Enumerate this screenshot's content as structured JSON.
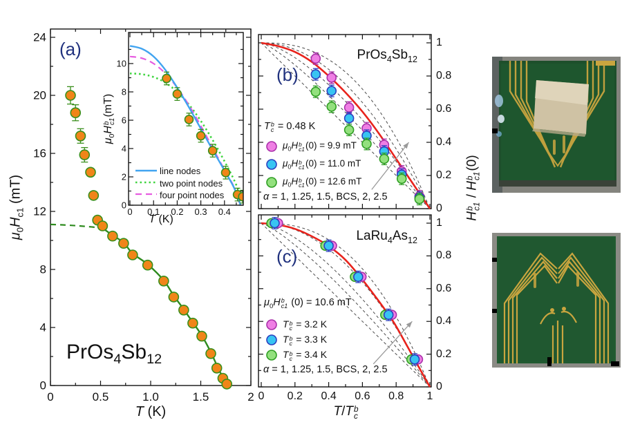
{
  "colors": {
    "axis": "#111111",
    "panel_label": "#20317e",
    "orange_fill": "#f08519",
    "orange_edge": "#3a8f1c",
    "green_curve": "#2e8b1e",
    "line_nodes_blue": "#41a4f0",
    "two_point_green": "#3ed43e",
    "four_point_magenta": "#e65ce0",
    "red_curve": "#e8231c",
    "dashed_gray": "#4a4a4a",
    "arrow_gray": "#9a9a9a",
    "magenta_fill": "#ef7fe4",
    "magenta_edge": "#aa30aa",
    "blue_fill": "#38c4f2",
    "blue_edge": "#2b3fc0",
    "green_fill": "#93e07e",
    "green_edge": "#2f9e23",
    "pcb_green": "#1d4f2b",
    "pcb_green2": "#215a31",
    "gold": "#c9a53f",
    "sample_tan": "#cfc2a4"
  },
  "panel_a": {
    "label": "(a)",
    "title_html": "PrOs<sub>4</sub>Sb<sub>12</sub>",
    "xlabel_html": "<i>T</i> (K)",
    "ylabel_html": "<i>μ</i><sub>0</sub><i>H</i><sub>c1</sub> (mT)"
  },
  "inset": {
    "xlabel_html": "<i>T</i> (K)",
    "ylabel_html": "<i>μ</i><sub>0</sub><i>H</i><span class='stk'><span><i>b</i></span><span><i>c1</i></span></span>(mT)",
    "legend": [
      "line nodes",
      "two point nodes",
      "four point nodes"
    ]
  },
  "panel_b": {
    "label": "(b)",
    "title_html": "PrOs<sub>4</sub>Sb<sub>12</sub>",
    "tc_html": "<i>T</i><span class='stk'><span><i>b</i></span><span><i>c</i></span></span> = 0.48 K",
    "legend_html": [
      "<i>μ</i><sub>0</sub><i>H</i><span class='stk'><span><i>b</i></span><span><i>c1</i></span></span>(0) = 9.9 mT",
      "<i>μ</i><sub>0</sub><i>H</i><span class='stk'><span><i>b</i></span><span><i>c1</i></span></span>(0) = 11.0 mT",
      "<i>μ</i><sub>0</sub><i>H</i><span class='stk'><span><i>b</i></span><span><i>c1</i></span></span>(0) = 12.6 mT"
    ],
    "alpha_html": "<i>α</i> = 1, 1.25, 1.5, BCS, 2, 2.5"
  },
  "panel_c": {
    "label": "(c)",
    "title_html": "LaRu<sub>4</sub>As<sub>12</sub>",
    "h0_html": "<i>μ</i><sub>0</sub><i>H</i><span class='stk'><span><i>b</i></span><span><i>c1</i></span></span> (0) = 10.6 mT",
    "legend_html": [
      "<i>T</i><span class='stk'><span><i>b</i></span><span><i>c</i></span></span> = 3.2 K",
      "<i>T</i><span class='stk'><span><i>b</i></span><span><i>c</i></span></span> = 3.3 K",
      "<i>T</i><span class='stk'><span><i>b</i></span><span><i>c</i></span></span> = 3.4 K"
    ],
    "alpha_html": "<i>α</i> = 1, 1.25, 1.5, BCS, 2, 2.5",
    "xlabel_html": "<i>T</i>/<i>T</i><span class='stk'><span><i>b</i></span><span><i>c</i></span></span>"
  },
  "shared_ylabel_html": "<i>H</i><span class='stk'><span><i>b</i></span><span><i>c1</i></span></span> / <i>H</i><span class='stk'><span><i>b</i></span><span><i>c1</i></span></span>(0)",
  "chart_data": [
    {
      "id": "panel_a",
      "type": "scatter",
      "title": "PrOs4Sb12",
      "xlabel": "T (K)",
      "ylabel": "mu0 Hc1 (mT)",
      "xlim": [
        0,
        2
      ],
      "ylim": [
        0,
        24.6
      ],
      "xticks": {
        "values": [
          0,
          0.5,
          1,
          1.5,
          2
        ],
        "labels": [
          "0",
          "0.5",
          "1.0",
          "1.5",
          "2"
        ],
        "minor": [
          0.25,
          0.75,
          1.25,
          1.75
        ]
      },
      "yticks": {
        "values": [
          0,
          4,
          8,
          12,
          16,
          20,
          24
        ],
        "labels": [
          "0",
          "4",
          "8",
          "12",
          "16",
          "20",
          "24"
        ],
        "minor": [
          2,
          6,
          10,
          14,
          18,
          22
        ]
      },
      "points": [
        [
          0.2,
          20.0
        ],
        [
          0.25,
          18.8
        ],
        [
          0.3,
          17.2
        ],
        [
          0.34,
          15.9
        ],
        [
          0.4,
          14.7
        ],
        [
          0.43,
          13.1
        ],
        [
          0.47,
          11.4
        ],
        [
          0.52,
          11.0
        ],
        [
          0.62,
          10.3
        ],
        [
          0.73,
          9.8
        ],
        [
          0.82,
          9.0
        ],
        [
          0.97,
          8.3
        ],
        [
          1.13,
          7.2
        ],
        [
          1.23,
          6.1
        ],
        [
          1.33,
          5.2
        ],
        [
          1.42,
          4.3
        ],
        [
          1.51,
          3.4
        ],
        [
          1.6,
          2.2
        ],
        [
          1.66,
          1.2
        ],
        [
          1.72,
          0.5
        ],
        [
          1.76,
          0.1
        ]
      ],
      "yerr": [
        0.6,
        0.55,
        0.5,
        0.5,
        0,
        0,
        0,
        0,
        0,
        0,
        0,
        0,
        0,
        0,
        0,
        0,
        0,
        0,
        0,
        0,
        0
      ],
      "fit_solid": [
        [
          0.52,
          10.85
        ],
        [
          0.62,
          10.35
        ],
        [
          0.73,
          9.85
        ],
        [
          0.82,
          9.1
        ],
        [
          0.97,
          8.35
        ],
        [
          1.13,
          7.25
        ],
        [
          1.23,
          6.2
        ],
        [
          1.33,
          5.25
        ],
        [
          1.42,
          4.35
        ],
        [
          1.51,
          3.45
        ],
        [
          1.6,
          2.3
        ],
        [
          1.68,
          1.1
        ],
        [
          1.74,
          0.35
        ],
        [
          1.78,
          0
        ]
      ],
      "fit_dashed": [
        [
          0,
          11.1
        ],
        [
          0.12,
          11.07
        ],
        [
          0.25,
          11.02
        ],
        [
          0.38,
          10.95
        ],
        [
          0.52,
          10.85
        ]
      ]
    },
    {
      "id": "panel_a_inset",
      "type": "line",
      "title": "nodal-model fits",
      "xlabel": "T (K)",
      "ylabel": "mu0 Hc1_b (mT)",
      "xlim": [
        0,
        0.48
      ],
      "ylim": [
        0,
        12.2
      ],
      "xticks": {
        "values": [
          0,
          0.1,
          0.2,
          0.3,
          0.4
        ],
        "labels": [
          "0",
          "0.1",
          "0.2",
          "0.3",
          "0.4"
        ],
        "minor": [
          0.05,
          0.15,
          0.25,
          0.35,
          0.45
        ]
      },
      "yticks": {
        "values": [
          0,
          2,
          4,
          6,
          8,
          10
        ],
        "labels": [
          "0",
          "2",
          "4",
          "6",
          "8",
          "10"
        ],
        "minor": [
          1,
          3,
          5,
          7,
          9,
          11
        ]
      },
      "points": [
        [
          0.155,
          8.95
        ],
        [
          0.2,
          7.85
        ],
        [
          0.25,
          6.05
        ],
        [
          0.3,
          4.9
        ],
        [
          0.35,
          3.85
        ],
        [
          0.405,
          2.3
        ],
        [
          0.455,
          0.75
        ],
        [
          0.477,
          0.6
        ]
      ],
      "yerr_all": 0.45,
      "curves": [
        {
          "name": "line nodes",
          "style": "solid",
          "color_key": "line_nodes_blue",
          "points": [
            [
              0,
              11.25
            ],
            [
              0.05,
              11.05
            ],
            [
              0.1,
              10.5
            ],
            [
              0.15,
              9.55
            ],
            [
              0.2,
              8.3
            ],
            [
              0.25,
              6.9
            ],
            [
              0.3,
              5.4
            ],
            [
              0.35,
              3.9
            ],
            [
              0.4,
              2.45
            ],
            [
              0.44,
              1.25
            ],
            [
              0.468,
              0
            ]
          ]
        },
        {
          "name": "two point nodes",
          "style": "dotted",
          "color_key": "two_point_green",
          "points": [
            [
              0,
              9.3
            ],
            [
              0.05,
              9.25
            ],
            [
              0.1,
              9.05
            ],
            [
              0.15,
              8.65
            ],
            [
              0.2,
              8.0
            ],
            [
              0.25,
              7.1
            ],
            [
              0.3,
              5.95
            ],
            [
              0.35,
              4.6
            ],
            [
              0.4,
              3.1
            ],
            [
              0.44,
              1.8
            ],
            [
              0.478,
              0.3
            ]
          ]
        },
        {
          "name": "four point nodes",
          "style": "dashed",
          "color_key": "four_point_magenta",
          "points": [
            [
              0,
              10.5
            ],
            [
              0.05,
              10.38
            ],
            [
              0.1,
              10.0
            ],
            [
              0.15,
              9.3
            ],
            [
              0.2,
              8.3
            ],
            [
              0.25,
              7.05
            ],
            [
              0.3,
              5.6
            ],
            [
              0.35,
              4.05
            ],
            [
              0.4,
              2.5
            ],
            [
              0.44,
              1.3
            ],
            [
              0.462,
              0.2
            ]
          ]
        }
      ]
    },
    {
      "id": "panel_b",
      "type": "scatter",
      "title": "PrOs4Sb12",
      "xlabel": "T/Tc_b",
      "ylabel": "Hc1_b / Hc1_b(0)",
      "tc_b_K": 0.48,
      "xlim": [
        0,
        1
      ],
      "ylim": [
        0,
        1.05
      ],
      "xticks": {
        "values": [
          0,
          0.2,
          0.4,
          0.6,
          0.8,
          1
        ],
        "labels": [],
        "minor": [
          0.1,
          0.3,
          0.5,
          0.7,
          0.9
        ]
      },
      "yticks": {
        "values": [
          0,
          0.2,
          0.4,
          0.6,
          0.8,
          1
        ],
        "labels": [
          "0",
          "0.2",
          "0.4",
          "0.6",
          "0.8",
          "1"
        ],
        "minor": [
          0.1,
          0.3,
          0.5,
          0.7,
          0.9
        ]
      },
      "x": [
        0.323,
        0.417,
        0.521,
        0.625,
        0.729,
        0.833,
        0.938
      ],
      "series": [
        {
          "name": "mu0 Hc1_b(0) = 9.9 mT",
          "color_key": "magenta",
          "values": [
            0.905,
            0.79,
            0.61,
            0.485,
            0.385,
            0.225,
            0.075
          ]
        },
        {
          "name": "mu0 Hc1_b(0) = 11.0 mT",
          "color_key": "blue",
          "values": [
            0.81,
            0.71,
            0.545,
            0.44,
            0.345,
            0.205,
            0.067
          ]
        },
        {
          "name": "mu0 Hc1_b(0) = 12.6 mT",
          "color_key": "green",
          "values": [
            0.705,
            0.615,
            0.475,
            0.39,
            0.3,
            0.18,
            0.058
          ]
        }
      ],
      "yerr": 0.035,
      "alpha_values": [
        1,
        1.25,
        1.5,
        2,
        2.5
      ],
      "alpha_label": "alpha = 1, 1.25, 1.5, BCS, 2, 2.5",
      "bcs_curve": [
        [
          0,
          1
        ],
        [
          0.1,
          0.98
        ],
        [
          0.2,
          0.945
        ],
        [
          0.3,
          0.885
        ],
        [
          0.4,
          0.8
        ],
        [
          0.5,
          0.7
        ],
        [
          0.6,
          0.585
        ],
        [
          0.7,
          0.45
        ],
        [
          0.8,
          0.3
        ],
        [
          0.9,
          0.15
        ],
        [
          1,
          0
        ]
      ],
      "arrow": [
        [
          0.655,
          0.115
        ],
        [
          0.875,
          0.4
        ]
      ]
    },
    {
      "id": "panel_c",
      "type": "scatter",
      "title": "LaRu4As12",
      "xlabel": "T/Tc_b",
      "ylabel": "Hc1_b / Hc1_b(0)",
      "h0_mT": 10.6,
      "xlim": [
        0,
        1
      ],
      "ylim": [
        0,
        1.05
      ],
      "xticks": {
        "values": [
          0,
          0.2,
          0.4,
          0.6,
          0.8,
          1
        ],
        "labels": [
          "0",
          "0.2",
          "0.4",
          "0.6",
          "0.8",
          "1"
        ],
        "minor": [
          0.1,
          0.3,
          0.5,
          0.7,
          0.9
        ]
      },
      "yticks": {
        "values": [
          0,
          0.2,
          0.4,
          0.6,
          0.8,
          1
        ],
        "labels": [
          "0",
          "0.2",
          "0.4",
          "0.6",
          "0.8",
          "1"
        ],
        "minor": [
          0.1,
          0.3,
          0.5,
          0.7,
          0.9
        ]
      },
      "cluster_x": [
        0.08,
        0.4,
        0.575,
        0.755,
        0.91
      ],
      "cluster_y": [
        1.0,
        0.862,
        0.672,
        0.44,
        0.168
      ],
      "series": [
        {
          "name": "Tc_b = 3.2 K",
          "color_key": "magenta",
          "dx": 0.02
        },
        {
          "name": "Tc_b = 3.3 K",
          "color_key": "blue",
          "dx": 0
        },
        {
          "name": "Tc_b = 3.4 K",
          "color_key": "green",
          "dx": -0.02
        }
      ],
      "yerr": 0.035,
      "alpha_values": [
        1,
        1.25,
        1.5,
        2,
        2.5
      ],
      "alpha_label": "alpha = 1, 1.25, 1.5, BCS, 2, 2.5",
      "bcs_curve": [
        [
          0,
          1
        ],
        [
          0.1,
          0.99
        ],
        [
          0.2,
          0.965
        ],
        [
          0.3,
          0.92
        ],
        [
          0.4,
          0.86
        ],
        [
          0.5,
          0.775
        ],
        [
          0.6,
          0.655
        ],
        [
          0.7,
          0.52
        ],
        [
          0.755,
          0.44
        ],
        [
          0.8,
          0.37
        ],
        [
          0.9,
          0.185
        ],
        [
          1,
          0
        ]
      ],
      "arrow": [
        [
          0.665,
          0.14
        ],
        [
          0.895,
          0.4
        ]
      ]
    }
  ]
}
